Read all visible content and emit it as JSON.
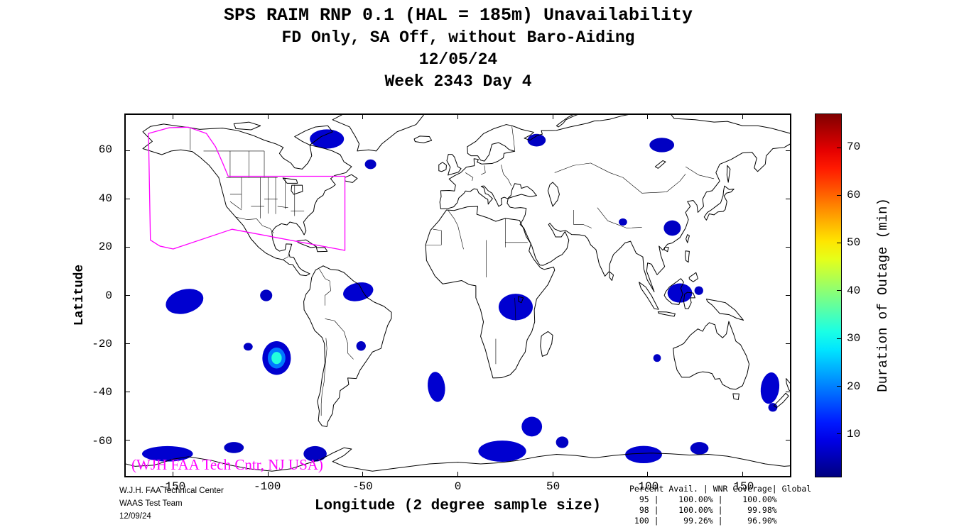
{
  "title": {
    "line1": "SPS RAIM RNP 0.1 (HAL = 185m) Unavailability",
    "line2": "FD Only, SA Off, without Baro-Aiding",
    "line3": "12/05/24",
    "line4": "Week 2343 Day 4"
  },
  "axes": {
    "x_label": "Longitude (2 degree sample size)",
    "y_label": "Latitude",
    "x_ticks": [
      -150,
      -100,
      -50,
      0,
      50,
      100,
      150
    ],
    "y_ticks": [
      60,
      40,
      20,
      0,
      -20,
      -40,
      -60
    ],
    "lon_range": [
      -175,
      175
    ],
    "lat_range": [
      -75,
      75
    ]
  },
  "colorbar": {
    "label": "Duration of Outage (min)",
    "ticks": [
      10,
      20,
      30,
      40,
      50,
      60,
      70
    ],
    "range": [
      1,
      77
    ],
    "colormap": "jet"
  },
  "map": {
    "annotation": "(WJH FAA Tech Cntr, NJ USA)",
    "annotation_color": "#ff00ff",
    "service_area_color": "#ff00ff",
    "coastline_color": "#000000"
  },
  "footer": {
    "left_lines": [
      "W.J.H. FAA Technical Center",
      "WAAS Test Team",
      "12/09/24"
    ],
    "stats_header": "Percent Avail. | WNR Coverage| Global",
    "stats_rows": [
      [
        "95",
        "100.00%",
        "100.00%"
      ],
      [
        "98",
        "100.00%",
        "99.98%"
      ],
      [
        "100",
        "99.26%",
        "96.90%"
      ]
    ]
  },
  "chart_data": {
    "type": "heatmap",
    "title": "SPS RAIM RNP 0.1 (HAL = 185m) Unavailability",
    "subtitle": "FD Only, SA Off, without Baro-Aiding",
    "date": "12/05/24",
    "week_day": "Week 2343 Day 4",
    "xlabel": "Longitude (2 degree sample size)",
    "ylabel": "Latitude",
    "value_label": "Duration of Outage (min)",
    "value_range": [
      1,
      77
    ],
    "colormap": "jet",
    "xlim": [
      -175,
      175
    ],
    "ylim": [
      -75,
      75
    ],
    "outage_regions": [
      {
        "lon": -69,
        "lat": 65,
        "rx": 9,
        "ry": 4,
        "v": 7
      },
      {
        "lon": -46,
        "lat": 54.5,
        "rx": 3,
        "ry": 2,
        "v": 6
      },
      {
        "lon": 41.5,
        "lat": 64.5,
        "rx": 4.8,
        "ry": 2.6,
        "v": 6
      },
      {
        "lon": 107.5,
        "lat": 62.5,
        "rx": 6.5,
        "ry": 3,
        "v": 6
      },
      {
        "lon": 113,
        "lat": 28,
        "rx": 4.5,
        "ry": 3.2,
        "v": 6
      },
      {
        "lon": 87,
        "lat": 30.5,
        "rx": 2.2,
        "ry": 1.5,
        "v": 6
      },
      {
        "lon": 117,
        "lat": 1,
        "rx": 6.5,
        "ry": 4,
        "v": 7
      },
      {
        "lon": 127,
        "lat": 2,
        "rx": 2.3,
        "ry": 1.8,
        "v": 6
      },
      {
        "lon": 30.5,
        "lat": -4.8,
        "rx": 9,
        "ry": 5.5,
        "v": 7
      },
      {
        "lon": -52.5,
        "lat": 1.5,
        "rx": 8,
        "ry": 3.8,
        "rot": -8,
        "v": 7
      },
      {
        "lon": -144,
        "lat": -2.5,
        "rx": 10,
        "ry": 5,
        "rot": -10,
        "v": 7
      },
      {
        "lon": -101,
        "lat": 0,
        "rx": 3.2,
        "ry": 2.4,
        "v": 6
      },
      {
        "lon": -95.5,
        "lat": -26,
        "rx": 7.5,
        "ry": 7,
        "v": 7,
        "core_v": 32
      },
      {
        "lon": -110.5,
        "lat": -21.3,
        "rx": 2.4,
        "ry": 1.6,
        "v": 6
      },
      {
        "lon": -51,
        "lat": -21,
        "rx": 2.5,
        "ry": 2,
        "v": 6
      },
      {
        "lon": 105,
        "lat": -26,
        "rx": 2,
        "ry": 1.6,
        "v": 6
      },
      {
        "lon": -11.3,
        "lat": -38,
        "rx": 4.5,
        "ry": 6.3,
        "rot": -12,
        "v": 7
      },
      {
        "lon": 39,
        "lat": -54.5,
        "rx": 5.4,
        "ry": 4.1,
        "v": 7
      },
      {
        "lon": 55,
        "lat": -61,
        "rx": 3.3,
        "ry": 2.4,
        "v": 6
      },
      {
        "lon": 164.5,
        "lat": -38.5,
        "rx": 4.8,
        "ry": 6.6,
        "rot": 14,
        "v": 7
      },
      {
        "lon": 166,
        "lat": -46.5,
        "rx": 2.4,
        "ry": 1.8,
        "v": 6
      },
      {
        "lon": -153,
        "lat": -65.8,
        "rx": 13.4,
        "ry": 3.2,
        "v": 7
      },
      {
        "lon": -118,
        "lat": -63.2,
        "rx": 5.2,
        "ry": 2.3,
        "v": 6
      },
      {
        "lon": -75.2,
        "lat": -65.8,
        "rx": 6.1,
        "ry": 3.2,
        "v": 6
      },
      {
        "lon": 23.4,
        "lat": -64.7,
        "rx": 12.6,
        "ry": 4.4,
        "v": 7
      },
      {
        "lon": 97.9,
        "lat": -66.1,
        "rx": 9.7,
        "ry": 3.6,
        "v": 7
      },
      {
        "lon": 127.3,
        "lat": -63.5,
        "rx": 4.8,
        "ry": 2.6,
        "v": 6
      }
    ],
    "service_area": [
      [
        -163,
        67.3
      ],
      [
        -152,
        69.7
      ],
      [
        -142,
        69.9
      ],
      [
        -132.5,
        67.3
      ],
      [
        -127.7,
        61.8
      ],
      [
        -123.9,
        55
      ],
      [
        -121,
        49.5
      ],
      [
        -59.5,
        49.5
      ],
      [
        -59.5,
        18.7
      ],
      [
        -119,
        27.5
      ],
      [
        -150,
        19.3
      ],
      [
        -157,
        20.5
      ],
      [
        -162,
        23
      ]
    ]
  }
}
